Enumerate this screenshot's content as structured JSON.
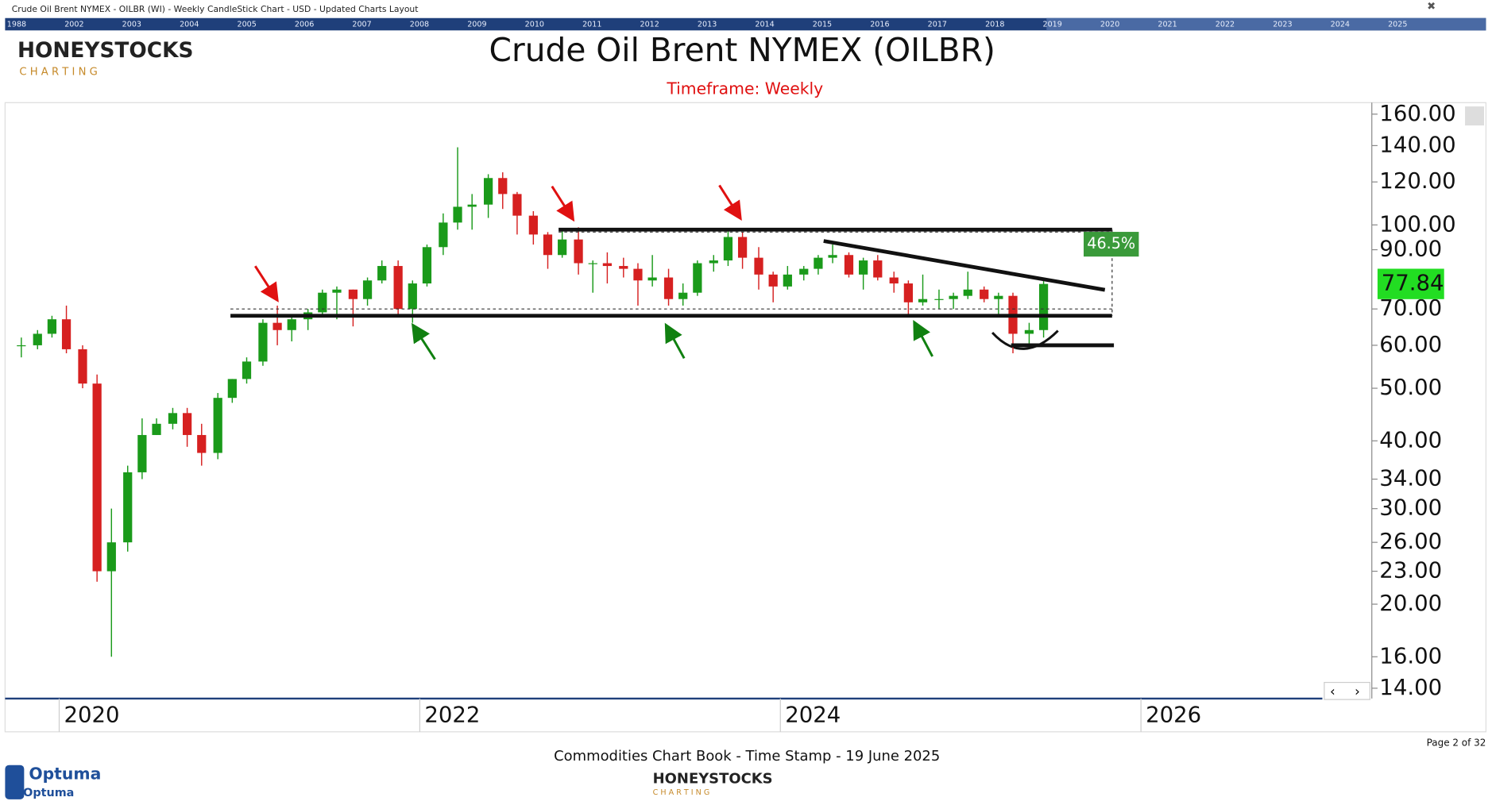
{
  "header": {
    "caption": "Crude Oil Brent NYMEX - OILBR (WI) - Weekly CandleStick Chart - USD - Updated Charts Layout",
    "timeline": [
      "1988",
      "2002",
      "2003",
      "2004",
      "2005",
      "2006",
      "2007",
      "2008",
      "2009",
      "2010",
      "2011",
      "2012",
      "2013",
      "2014",
      "2015",
      "2016",
      "2017",
      "2018",
      "2019",
      "2020",
      "2021",
      "2022",
      "2023",
      "2024",
      "2025"
    ],
    "logo_top": "HONEYSTOCKS",
    "logo_bottom": "C H A R T I N G"
  },
  "chart_data": {
    "type": "candlestick",
    "title": "Crude Oil Brent NYMEX (OILBR)",
    "subtitle": "Timeframe: Weekly",
    "log_scale": true,
    "up_color": "#1a9a1a",
    "down_color": "#d62020",
    "x": [
      2019.79,
      2019.88,
      2019.96,
      2020.04,
      2020.13,
      2020.21,
      2020.29,
      2020.38,
      2020.46,
      2020.54,
      2020.63,
      2020.71,
      2020.79,
      2020.88,
      2020.96,
      2021.04,
      2021.13,
      2021.21,
      2021.29,
      2021.38,
      2021.46,
      2021.54,
      2021.63,
      2021.71,
      2021.79,
      2021.88,
      2021.96,
      2022.04,
      2022.13,
      2022.21,
      2022.29,
      2022.38,
      2022.46,
      2022.54,
      2022.63,
      2022.71,
      2022.79,
      2022.88,
      2022.96,
      2023.04,
      2023.13,
      2023.21,
      2023.29,
      2023.38,
      2023.46,
      2023.54,
      2023.63,
      2023.71,
      2023.79,
      2023.88,
      2023.96,
      2024.04,
      2024.13,
      2024.21,
      2024.29,
      2024.38,
      2024.46,
      2024.54,
      2024.63,
      2024.71,
      2024.79,
      2024.88,
      2024.96,
      2025.04,
      2025.13,
      2025.21,
      2025.29,
      2025.38,
      2025.46
    ],
    "open": [
      60,
      60,
      63,
      67,
      59,
      51,
      23,
      26,
      35,
      41,
      43,
      45,
      41,
      38,
      48,
      52,
      56,
      66,
      64,
      67,
      69,
      75,
      76,
      73,
      79,
      84,
      70,
      78,
      91,
      101,
      108,
      109,
      122,
      114,
      104,
      96,
      88,
      94,
      85,
      85,
      84,
      83,
      79,
      80,
      73,
      75,
      85,
      86,
      95,
      87,
      81,
      77,
      81,
      83,
      87,
      88,
      81,
      86,
      80,
      78,
      72,
      73,
      73,
      74,
      76,
      73,
      74,
      63,
      64
    ],
    "high": [
      62,
      64,
      68,
      71,
      60,
      53,
      30,
      36,
      44,
      44,
      46,
      46,
      43,
      49,
      52,
      57,
      67,
      71,
      68,
      70,
      76,
      77,
      76,
      80,
      86,
      86,
      79,
      92,
      105,
      139,
      114,
      124,
      125,
      115,
      106,
      97,
      98,
      99,
      86,
      89,
      87,
      85,
      88,
      83,
      78,
      86,
      88,
      98,
      97,
      91,
      82,
      84,
      84,
      88,
      92,
      89,
      87,
      88,
      82,
      79,
      81,
      76,
      75,
      82,
      77,
      75,
      75,
      66,
      79
    ],
    "low": [
      57,
      59,
      62,
      58,
      50,
      22,
      16,
      25,
      34,
      41,
      42,
      39,
      36,
      37,
      47,
      51,
      55,
      60,
      61,
      64,
      68,
      67,
      65,
      71,
      78,
      68,
      66,
      77,
      88,
      98,
      98,
      103,
      107,
      96,
      92,
      83,
      87,
      81,
      75,
      78,
      80,
      71,
      77,
      71,
      71,
      74,
      82,
      84,
      83,
      76,
      72,
      76,
      79,
      81,
      85,
      80,
      76,
      79,
      75,
      68,
      71,
      70,
      70,
      73,
      72,
      68,
      58,
      60,
      62
    ],
    "close": [
      60,
      63,
      67,
      59,
      51,
      23,
      26,
      35,
      41,
      43,
      45,
      41,
      38,
      48,
      52,
      56,
      66,
      64,
      67,
      69,
      75,
      76,
      73,
      79,
      84,
      70,
      78,
      91,
      101,
      108,
      109,
      122,
      114,
      104,
      96,
      88,
      94,
      85,
      85,
      84,
      83,
      79,
      80,
      73,
      75,
      85,
      86,
      95,
      87,
      81,
      77,
      81,
      83,
      87,
      88,
      81,
      86,
      80,
      78,
      72,
      73,
      73,
      74,
      76,
      73,
      74,
      63,
      64,
      77.84
    ],
    "last_price": 77.84,
    "xlim": [
      2019.7,
      2027.27
    ],
    "xticks": [
      2020,
      2022,
      2024,
      2026
    ],
    "ylim": [
      13.4,
      168
    ],
    "yticks": [
      {
        "value": 14,
        "label": "14.00"
      },
      {
        "value": 16,
        "label": "16.00"
      },
      {
        "value": 20,
        "label": "20.00"
      },
      {
        "value": 23,
        "label": "23.00"
      },
      {
        "value": 26,
        "label": "26.00"
      },
      {
        "value": 30,
        "label": "30.00"
      },
      {
        "value": 34,
        "label": "34.00"
      },
      {
        "value": 40,
        "label": "40.00"
      },
      {
        "value": 50,
        "label": "50.00"
      },
      {
        "value": 60,
        "label": "60.00"
      },
      {
        "value": 70,
        "label": "70.00"
      },
      {
        "value": 90,
        "label": "90.00"
      },
      {
        "value": 100,
        "label": "100.00"
      },
      {
        "value": 120,
        "label": "120.00"
      },
      {
        "value": 140,
        "label": "140.00"
      },
      {
        "value": 160,
        "label": "160.00"
      }
    ],
    "lines": [
      {
        "x": [
          2022.77,
          2025.84
        ],
        "y": [
          98,
          98
        ]
      },
      {
        "x": [
          2020.95,
          2025.84
        ],
        "y": [
          68,
          68
        ]
      },
      {
        "x": [
          2024.24,
          2025.8
        ],
        "y": [
          93.4,
          75.9
        ]
      },
      {
        "x": [
          2025.28,
          2025.85
        ],
        "y": [
          60,
          60
        ]
      }
    ],
    "dashed_lines": [
      {
        "x": [
          2020.95,
          2025.84
        ],
        "y": [
          70,
          70
        ]
      },
      {
        "x": [
          2022.77,
          2025.84
        ],
        "y": [
          97,
          97
        ]
      }
    ],
    "change_label": "46.5%",
    "footer": "Commodities Chart Book - Time Stamp - 19 June 2025",
    "page": "Page 2 of 32",
    "brand": "Optuma"
  }
}
